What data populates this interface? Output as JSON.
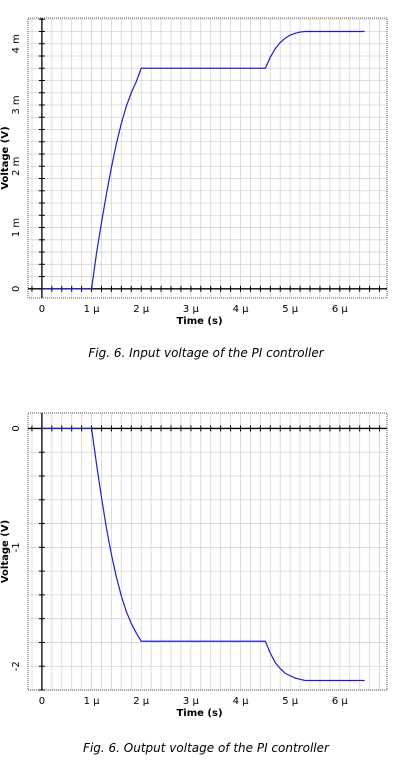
{
  "chart_data": [
    {
      "type": "line",
      "title": "",
      "caption": "Fig. 6. Input voltage of the PI controller",
      "xlabel": "Time (s)",
      "ylabel": "Voltage (V)",
      "xlim": [
        -2.8e-07,
        6.95e-06
      ],
      "ylim": [
        -0.00015,
        0.00442
      ],
      "grid": true,
      "x_ticks": [
        {
          "value": 0,
          "label": "0"
        },
        {
          "value": 1e-06,
          "label": "1 µ"
        },
        {
          "value": 2e-06,
          "label": "2 µ"
        },
        {
          "value": 3e-06,
          "label": "3 µ"
        },
        {
          "value": 4e-06,
          "label": "4 µ"
        },
        {
          "value": 5e-06,
          "label": "5 µ"
        },
        {
          "value": 6e-06,
          "label": "6 µ"
        }
      ],
      "y_ticks": [
        {
          "value": 0,
          "label": "0"
        },
        {
          "value": 0.001,
          "label": "1 m"
        },
        {
          "value": 0.002,
          "label": "2 m"
        },
        {
          "value": 0.003,
          "label": "3 m"
        },
        {
          "value": 0.004,
          "label": "4 m"
        }
      ],
      "series": [
        {
          "color": "#1f1fd0",
          "x": [
            0,
            1e-06,
            1.1e-06,
            1.2e-06,
            1.3e-06,
            1.4e-06,
            1.5e-06,
            1.6e-06,
            1.7e-06,
            1.8e-06,
            1.9e-06,
            2e-06,
            4.5e-06,
            4.6e-06,
            4.7e-06,
            4.8e-06,
            4.9e-06,
            5e-06,
            5.1e-06,
            5.2e-06,
            5.3e-06,
            5.4e-06,
            5.5e-06,
            6.5e-06
          ],
          "y": [
            0,
            0,
            0.00058,
            0.00108,
            0.00155,
            0.00198,
            0.00237,
            0.0027,
            0.00298,
            0.0032,
            0.00338,
            0.0036,
            0.0036,
            0.00378,
            0.00392,
            0.00402,
            0.00409,
            0.00414,
            0.00417,
            0.00419,
            0.0042,
            0.0042,
            0.0042,
            0.0042
          ]
        }
      ]
    },
    {
      "type": "line",
      "title": "",
      "caption": "Fig. 6. Output voltage of the PI controller",
      "xlabel": "Time (s)",
      "ylabel": "Voltage (V)",
      "xlim": [
        -2.8e-07,
        6.95e-06
      ],
      "ylim": [
        -2.2,
        0.13
      ],
      "grid": true,
      "x_ticks": [
        {
          "value": 0,
          "label": "0"
        },
        {
          "value": 1e-06,
          "label": "1 µ"
        },
        {
          "value": 2e-06,
          "label": "2 µ"
        },
        {
          "value": 3e-06,
          "label": "3 µ"
        },
        {
          "value": 4e-06,
          "label": "4 µ"
        },
        {
          "value": 5e-06,
          "label": "5 µ"
        },
        {
          "value": 6e-06,
          "label": "6 µ"
        }
      ],
      "y_ticks": [
        {
          "value": 0,
          "label": "0"
        },
        {
          "value": -1,
          "label": "-1"
        },
        {
          "value": -2,
          "label": "-2"
        }
      ],
      "series": [
        {
          "color": "#1f1fd0",
          "x": [
            0,
            1e-06,
            1.1e-06,
            1.2e-06,
            1.3e-06,
            1.4e-06,
            1.5e-06,
            1.6e-06,
            1.7e-06,
            1.8e-06,
            1.9e-06,
            2e-06,
            4.5e-06,
            4.6e-06,
            4.7e-06,
            4.8e-06,
            4.9e-06,
            5e-06,
            5.1e-06,
            5.2e-06,
            5.3e-06,
            5.4e-06,
            5.5e-06,
            6.5e-06
          ],
          "y": [
            0,
            0,
            -0.3,
            -0.58,
            -0.84,
            -1.06,
            -1.25,
            -1.41,
            -1.54,
            -1.64,
            -1.72,
            -1.79,
            -1.79,
            -1.89,
            -1.97,
            -2.02,
            -2.06,
            -2.08,
            -2.1,
            -2.11,
            -2.12,
            -2.12,
            -2.12,
            -2.12
          ]
        }
      ]
    }
  ]
}
